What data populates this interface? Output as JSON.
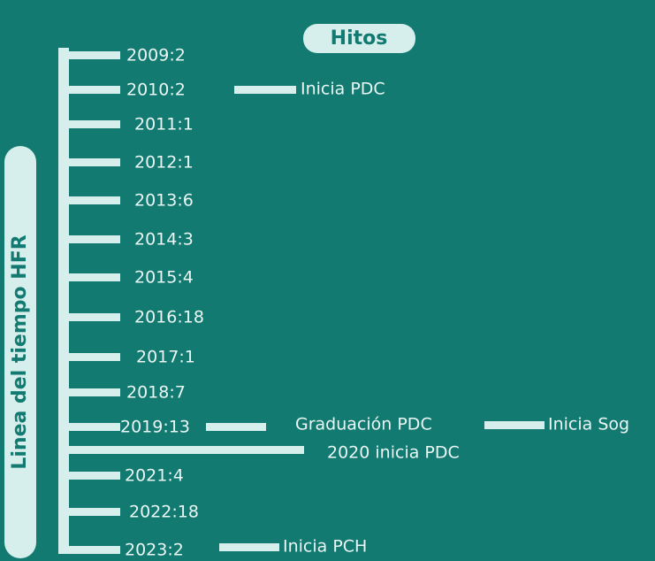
{
  "title": "Hitos",
  "side_label": "Linea del tiempo HFR",
  "years": [
    "2009:2",
    "2010:2",
    "2011:1",
    "2012:1",
    "2013:6",
    "2014:3",
    "2015:4",
    "2016:18",
    "2017:1",
    "2018:7",
    "2019:13",
    "2021:4",
    "2022:18",
    "2023:2"
  ],
  "milestones": [
    "Inicia PDC",
    "Graduación PDC",
    "Inicia Sog",
    "2020 inicia PDC",
    "Inicia PCH"
  ]
}
